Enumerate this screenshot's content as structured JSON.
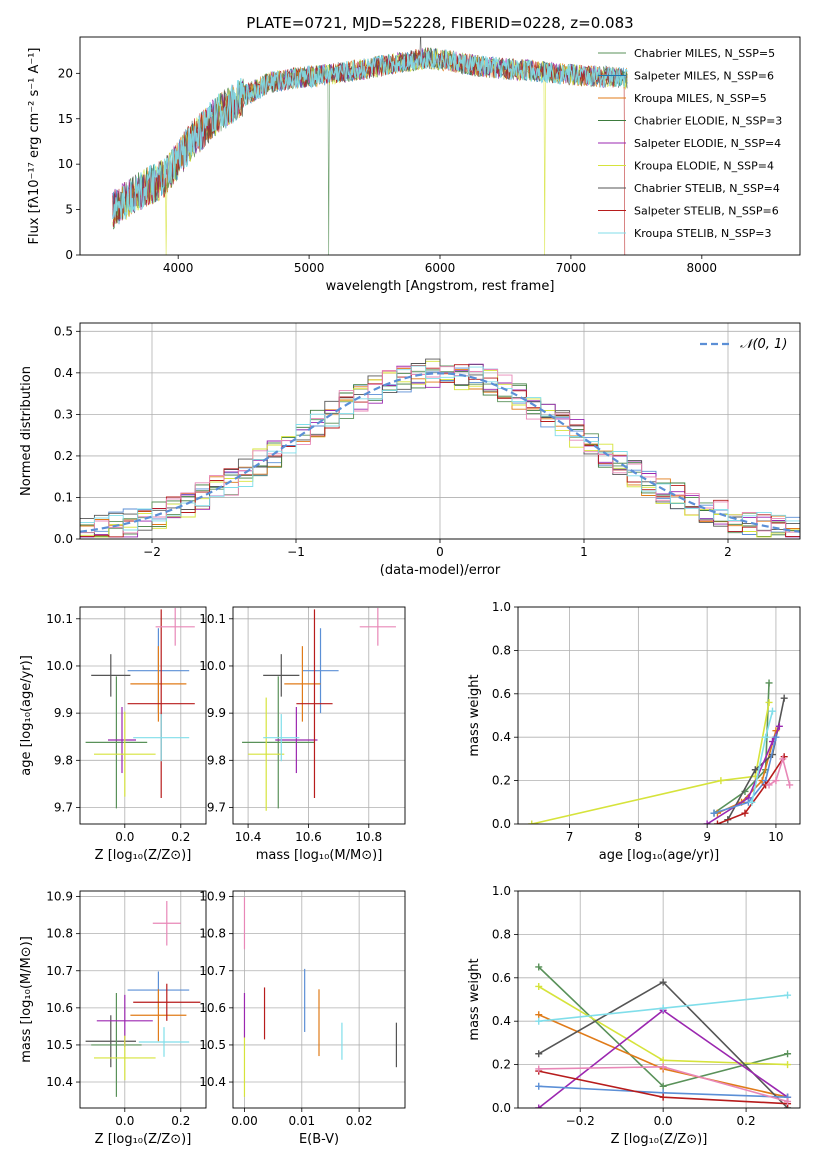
{
  "chart_data": [
    {
      "id": "spectrum",
      "type": "line",
      "title": "PLATE=0721, MJD=52228, FIBERID=0228, z=0.083",
      "xlabel": "wavelength [Angstrom, rest frame]",
      "ylabel": "Flux [fλ10⁻¹⁷ erg cm⁻² s⁻¹ A⁻¹]",
      "xlim": [
        3250,
        8750
      ],
      "ylim": [
        0,
        24
      ],
      "xticks": [
        4000,
        5000,
        6000,
        7000,
        8000
      ],
      "yticks": [
        0,
        5,
        10,
        15,
        20
      ],
      "legend_position": "right",
      "continuum_x": [
        3500,
        3700,
        3900,
        4000,
        4100,
        4300,
        4500,
        4700,
        4900,
        5100,
        5300,
        5500,
        5700,
        5900,
        6100,
        6300,
        6500,
        6700,
        6900,
        7100,
        7300,
        7430
      ],
      "continuum_y": [
        5.0,
        7.0,
        8.5,
        10.5,
        12.5,
        15.5,
        17.5,
        19.0,
        19.5,
        19.8,
        20.2,
        20.7,
        21.2,
        21.7,
        21.3,
        20.8,
        20.5,
        20.3,
        20.0,
        19.7,
        19.6,
        19.4
      ],
      "series": [
        {
          "name": "Chabrier MILES, N_SSP=5",
          "color": "#599159"
        },
        {
          "name": "Salpeter MILES, N_SSP=6",
          "color": "#1f77b4"
        },
        {
          "name": "Kroupa MILES, N_SSP=5",
          "color": "#e07b19"
        },
        {
          "name": "Chabrier ELODIE, N_SSP=3",
          "color": "#3d7b3d"
        },
        {
          "name": "Salpeter ELODIE, N_SSP=4",
          "color": "#9b27b0"
        },
        {
          "name": "Kroupa ELODIE, N_SSP=4",
          "color": "#d6e33b"
        },
        {
          "name": "Chabrier STELIB, N_SSP=4",
          "color": "#555555"
        },
        {
          "name": "Salpeter STELIB, N_SSP=6",
          "color": "#b71c1c"
        },
        {
          "name": "Kroupa STELIB, N_SSP=3",
          "color": "#80deea"
        }
      ]
    },
    {
      "id": "residuals",
      "type": "line",
      "xlabel": "(data-model)/error",
      "ylabel": "Normed distribution",
      "xlim": [
        -2.5,
        2.5
      ],
      "ylim": [
        0,
        0.52
      ],
      "xticks": [
        -2,
        -1,
        0,
        1,
        2
      ],
      "yticks": [
        0.0,
        0.1,
        0.2,
        0.3,
        0.4,
        0.5
      ],
      "grid": true,
      "legend_position": "top-right",
      "reference": {
        "name": "𝒩(0, 1)",
        "color": "#5b8fd6",
        "mean": 0,
        "std": 1
      }
    },
    {
      "id": "age_vs_Z",
      "type": "scatter",
      "xlabel": "Z [log₁₀(Z/Z⊙)]",
      "ylabel": "age  [log₁₀(age/yr)]",
      "xlim": [
        -0.16,
        0.29
      ],
      "ylim": [
        9.665,
        10.125
      ],
      "xticks": [
        0.0,
        0.2
      ],
      "yticks": [
        9.7,
        9.8,
        9.9,
        10.0,
        10.1
      ],
      "grid": true,
      "points": [
        {
          "x": -0.05,
          "y": 9.98,
          "xerr": 0.07,
          "yerr": 0.045,
          "color": "#555555"
        },
        {
          "x": -0.03,
          "y": 9.838,
          "xerr": 0.11,
          "yerr": 0.14,
          "color": "#599159"
        },
        {
          "x": -0.01,
          "y": 9.843,
          "xerr": 0.05,
          "yerr": 0.07,
          "color": "#9b27b0"
        },
        {
          "x": 0.0,
          "y": 9.813,
          "xerr": 0.11,
          "yerr": 0.09,
          "color": "#d6e33b"
        },
        {
          "x": 0.12,
          "y": 9.99,
          "xerr": 0.11,
          "yerr": 0.09,
          "color": "#5b8fd6"
        },
        {
          "x": 0.12,
          "y": 9.962,
          "xerr": 0.1,
          "yerr": 0.08,
          "color": "#e07b19"
        },
        {
          "x": 0.13,
          "y": 9.92,
          "xerr": 0.12,
          "yerr": 0.2,
          "color": "#b71c1c"
        },
        {
          "x": 0.18,
          "y": 10.083,
          "xerr": 0.07,
          "yerr": 0.04,
          "color": "#e887b7"
        },
        {
          "x": 0.13,
          "y": 9.848,
          "xerr": 0.1,
          "yerr": 0.05,
          "color": "#80deea"
        }
      ]
    },
    {
      "id": "age_vs_mass",
      "type": "scatter",
      "xlabel": "mass [log₁₀(M/M⊙)]",
      "xlim": [
        10.35,
        10.92
      ],
      "ylim": [
        9.665,
        10.125
      ],
      "xticks": [
        10.4,
        10.6,
        10.8
      ],
      "yticks": [
        9.7,
        9.8,
        9.9,
        10.0,
        10.1
      ],
      "grid": true,
      "points": [
        {
          "x": 10.51,
          "y": 9.98,
          "xerr": 0.06,
          "yerr": 0.045,
          "color": "#555555"
        },
        {
          "x": 10.5,
          "y": 9.838,
          "xerr": 0.12,
          "yerr": 0.14,
          "color": "#599159"
        },
        {
          "x": 10.56,
          "y": 9.843,
          "xerr": 0.07,
          "yerr": 0.07,
          "color": "#9b27b0"
        },
        {
          "x": 10.46,
          "y": 9.813,
          "xerr": 0.06,
          "yerr": 0.12,
          "color": "#d6e33b"
        },
        {
          "x": 10.64,
          "y": 9.99,
          "xerr": 0.06,
          "yerr": 0.09,
          "color": "#5b8fd6"
        },
        {
          "x": 10.58,
          "y": 9.962,
          "xerr": 0.06,
          "yerr": 0.08,
          "color": "#e07b19"
        },
        {
          "x": 10.62,
          "y": 9.92,
          "xerr": 0.06,
          "yerr": 0.2,
          "color": "#b71c1c"
        },
        {
          "x": 10.83,
          "y": 10.083,
          "xerr": 0.06,
          "yerr": 0.04,
          "color": "#e887b7"
        },
        {
          "x": 10.51,
          "y": 9.848,
          "xerr": 0.06,
          "yerr": 0.05,
          "color": "#80deea"
        }
      ]
    },
    {
      "id": "mass_weight_vs_age",
      "type": "line",
      "xlabel": "age  [log₁₀(age/yr)]",
      "ylabel": "mass weight",
      "xlim": [
        6.25,
        10.35
      ],
      "ylim": [
        0,
        1
      ],
      "xticks": [
        7,
        8,
        9,
        10
      ],
      "yticks": [
        0.0,
        0.2,
        0.4,
        0.6,
        0.8,
        1.0
      ],
      "grid": true,
      "series": [
        {
          "color": "#599159",
          "x": [
            9.1,
            9.55,
            9.85,
            9.9
          ],
          "y": [
            0.05,
            0.15,
            0.25,
            0.65
          ]
        },
        {
          "color": "#d6e33b",
          "x": [
            6.45,
            9.2,
            9.7,
            9.9
          ],
          "y": [
            0.0,
            0.2,
            0.22,
            0.56
          ]
        },
        {
          "color": "#e07b19",
          "x": [
            9.15,
            9.5,
            9.8,
            10.0
          ],
          "y": [
            0.05,
            0.1,
            0.2,
            0.43
          ]
        },
        {
          "color": "#555555",
          "x": [
            9.3,
            9.7,
            9.95,
            10.12
          ],
          "y": [
            0.02,
            0.25,
            0.32,
            0.58
          ]
        },
        {
          "color": "#9b27b0",
          "x": [
            9.0,
            9.6,
            9.95,
            10.05
          ],
          "y": [
            0.0,
            0.12,
            0.38,
            0.45
          ]
        },
        {
          "color": "#5b8fd6",
          "x": [
            9.1,
            9.6,
            9.85,
            10.0
          ],
          "y": [
            0.05,
            0.1,
            0.2,
            0.4
          ]
        },
        {
          "color": "#b71c1c",
          "x": [
            9.15,
            9.55,
            9.85,
            10.12
          ],
          "y": [
            0.0,
            0.05,
            0.18,
            0.31
          ]
        },
        {
          "color": "#e887b7",
          "x": [
            9.9,
            10.0,
            10.1,
            10.2
          ],
          "y": [
            0.18,
            0.2,
            0.3,
            0.18
          ]
        },
        {
          "color": "#80deea",
          "x": [
            9.65,
            9.85,
            9.95
          ],
          "y": [
            0.1,
            0.4,
            0.52
          ]
        }
      ]
    },
    {
      "id": "mass_vs_Z",
      "type": "scatter",
      "xlabel": "Z [log₁₀(Z/Z⊙)]",
      "ylabel": "mass [log₁₀(M/M⊙)]",
      "xlim": [
        -0.16,
        0.29
      ],
      "ylim": [
        10.33,
        10.915
      ],
      "xticks": [
        0.0,
        0.2
      ],
      "yticks": [
        10.4,
        10.5,
        10.6,
        10.7,
        10.8,
        10.9
      ],
      "grid": true,
      "points": [
        {
          "x": -0.05,
          "y": 10.51,
          "xerr": 0.09,
          "yerr": 0.07,
          "color": "#555555"
        },
        {
          "x": -0.03,
          "y": 10.5,
          "xerr": 0.09,
          "yerr": 0.14,
          "color": "#599159"
        },
        {
          "x": 0.0,
          "y": 10.565,
          "xerr": 0.1,
          "yerr": 0.07,
          "color": "#9b27b0"
        },
        {
          "x": 0.0,
          "y": 10.465,
          "xerr": 0.11,
          "yerr": 0.06,
          "color": "#d6e33b"
        },
        {
          "x": 0.12,
          "y": 10.648,
          "xerr": 0.11,
          "yerr": 0.05,
          "color": "#5b8fd6"
        },
        {
          "x": 0.12,
          "y": 10.58,
          "xerr": 0.1,
          "yerr": 0.07,
          "color": "#e07b19"
        },
        {
          "x": 0.15,
          "y": 10.615,
          "xerr": 0.12,
          "yerr": 0.05,
          "color": "#b71c1c"
        },
        {
          "x": 0.15,
          "y": 10.828,
          "xerr": 0.05,
          "yerr": 0.06,
          "color": "#e887b7"
        },
        {
          "x": 0.14,
          "y": 10.508,
          "xerr": 0.09,
          "yerr": 0.04,
          "color": "#80deea"
        }
      ]
    },
    {
      "id": "mass_vs_EBV",
      "type": "scatter",
      "xlabel": "E(B-V)",
      "xlim": [
        -0.002,
        0.028
      ],
      "ylim": [
        10.33,
        10.915
      ],
      "xticks": [
        0.0,
        0.01,
        0.02
      ],
      "yticks": [
        10.4,
        10.5,
        10.6,
        10.7,
        10.8,
        10.9
      ],
      "grid": true,
      "points": [
        {
          "x": 0.0,
          "y": 10.828,
          "yerr": 0.07,
          "color": "#e887b7"
        },
        {
          "x": 0.0,
          "y": 10.58,
          "yerr": 0.06,
          "color": "#9b27b0"
        },
        {
          "x": 0.0,
          "y": 10.44,
          "yerr": 0.08,
          "color": "#d6e33b"
        },
        {
          "x": 0.0035,
          "y": 10.585,
          "yerr": 0.07,
          "color": "#b71c1c"
        },
        {
          "x": 0.0105,
          "y": 10.62,
          "yerr": 0.085,
          "color": "#5b8fd6"
        },
        {
          "x": 0.013,
          "y": 10.56,
          "yerr": 0.09,
          "color": "#e07b19"
        },
        {
          "x": 0.017,
          "y": 10.51,
          "yerr": 0.05,
          "color": "#80deea"
        },
        {
          "x": 0.0265,
          "y": 10.5,
          "yerr": 0.06,
          "color": "#555555"
        }
      ]
    },
    {
      "id": "mass_weight_vs_Z",
      "type": "line",
      "xlabel": "Z [log₁₀(Z/Z⊙)]",
      "ylabel": "mass weight",
      "xlim": [
        -0.35,
        0.33
      ],
      "ylim": [
        0,
        1
      ],
      "xticks": [
        -0.2,
        0.0,
        0.2
      ],
      "yticks": [
        0.0,
        0.2,
        0.4,
        0.6,
        0.8,
        1.0
      ],
      "grid": true,
      "series": [
        {
          "color": "#599159",
          "x": [
            -0.3,
            0.0,
            0.3
          ],
          "y": [
            0.65,
            0.1,
            0.25
          ]
        },
        {
          "color": "#d6e33b",
          "x": [
            -0.3,
            0.0,
            0.3
          ],
          "y": [
            0.56,
            0.22,
            0.2
          ]
        },
        {
          "color": "#e07b19",
          "x": [
            -0.3,
            0.0,
            0.3
          ],
          "y": [
            0.43,
            0.18,
            0.05
          ]
        },
        {
          "color": "#555555",
          "x": [
            -0.3,
            0.0,
            0.3
          ],
          "y": [
            0.25,
            0.58,
            0.0
          ]
        },
        {
          "color": "#9b27b0",
          "x": [
            -0.3,
            0.0,
            0.3
          ],
          "y": [
            0.0,
            0.45,
            0.05
          ]
        },
        {
          "color": "#5b8fd6",
          "x": [
            -0.3,
            0.0,
            0.3
          ],
          "y": [
            0.1,
            0.07,
            0.05
          ]
        },
        {
          "color": "#b71c1c",
          "x": [
            -0.3,
            0.0,
            0.3
          ],
          "y": [
            0.17,
            0.05,
            0.02
          ]
        },
        {
          "color": "#e887b7",
          "x": [
            -0.3,
            0.0,
            0.3
          ],
          "y": [
            0.18,
            0.19,
            0.03
          ]
        },
        {
          "color": "#80deea",
          "x": [
            -0.3,
            0.0,
            0.3
          ],
          "y": [
            0.4,
            0.46,
            0.52
          ]
        }
      ]
    }
  ]
}
